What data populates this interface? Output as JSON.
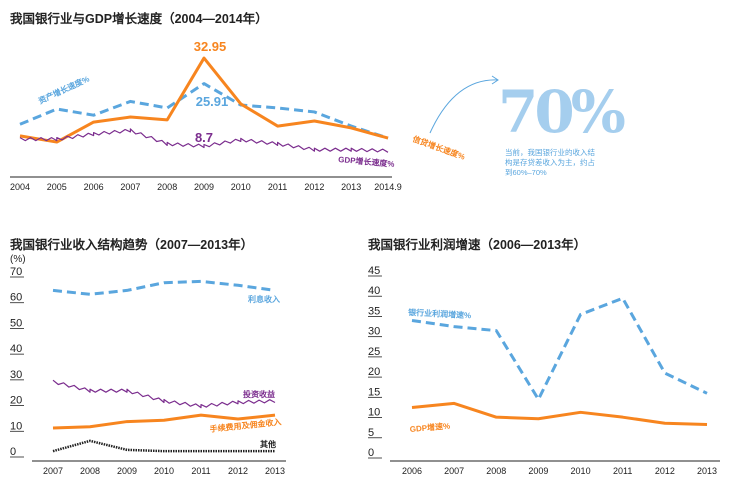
{
  "colors": {
    "blue": "#5aa6de",
    "orange": "#f7851f",
    "purple": "#7b2d8e",
    "black": "#222222"
  },
  "callout": {
    "big": "70%",
    "text": "当前，我国银行业的收入结构是存贷差收入为主，约占到60%–70%"
  },
  "chart_data": [
    {
      "type": "line",
      "title": "我国银行业与GDP增长速度（2004—2014年）",
      "categories": [
        "2004",
        "2005",
        "2006",
        "2007",
        "2008",
        "2009",
        "2010",
        "2011",
        "2012",
        "2013",
        "2014.9"
      ],
      "ylim": [
        0,
        36
      ],
      "series": [
        {
          "name": "资产增长速度%",
          "style": "dashed",
          "color": "blue",
          "values": [
            14.7,
            18.9,
            17.2,
            21,
            19.2,
            25.91,
            20,
            19.2,
            18.1,
            14.2,
            10.9
          ]
        },
        {
          "name": "信贷增长速度%",
          "style": "solid",
          "color": "orange",
          "values": [
            11.5,
            9.8,
            15.3,
            16.7,
            15.9,
            32.95,
            20.3,
            14.2,
            15.6,
            13.7,
            10.9
          ]
        },
        {
          "name": "GDP增长速度%",
          "style": "wavy",
          "color": "purple",
          "values": [
            10.6,
            10.6,
            12,
            13,
            9.3,
            8.7,
            10.4,
            9.3,
            7.7,
            7.7,
            7.4
          ]
        }
      ],
      "annotations": [
        "32.95",
        "25.91",
        "8.7"
      ]
    },
    {
      "type": "line",
      "title": "我国银行业收入结构趋势（2007—2013年）",
      "ylabel": "(%)",
      "categories": [
        "2007",
        "2008",
        "2009",
        "2010",
        "2011",
        "2012",
        "2013"
      ],
      "ylim": [
        0,
        70
      ],
      "yticks": [
        "0",
        "10",
        "20",
        "30",
        "40",
        "50",
        "60",
        "70"
      ],
      "series": [
        {
          "name": "利息收入",
          "style": "dashed",
          "color": "blue",
          "values": [
            64,
            62.5,
            64,
            67,
            67.5,
            66,
            64
          ]
        },
        {
          "name": "投资收益",
          "style": "wavy",
          "color": "purple",
          "values": [
            28.5,
            25,
            25,
            21,
            19,
            20.5,
            21
          ]
        },
        {
          "name": "手续费用及佣金收入",
          "style": "solid",
          "color": "orange",
          "values": [
            10.5,
            11,
            13,
            13.5,
            15.5,
            14,
            15.5
          ]
        },
        {
          "name": "其他",
          "style": "dotted",
          "color": "black",
          "values": [
            1.5,
            5.5,
            2,
            1.5,
            1.5,
            1.5,
            1.5
          ]
        }
      ]
    },
    {
      "type": "line",
      "title": "我国银行业利润增速（2006—2013年）",
      "categories": [
        "2006",
        "2007",
        "2008",
        "2009",
        "2010",
        "2011",
        "2012",
        "2013"
      ],
      "ylim": [
        0,
        45
      ],
      "yticks": [
        "0",
        "5",
        "10",
        "15",
        "20",
        "25",
        "30",
        "35",
        "40",
        "45"
      ],
      "series": [
        {
          "name": "银行业利润增速%",
          "style": "dashed",
          "color": "blue",
          "values": [
            33.5,
            32,
            31,
            14,
            35,
            39,
            20.5,
            15.5
          ]
        },
        {
          "name": "GDP增速%",
          "style": "solid",
          "color": "orange",
          "values": [
            12,
            13,
            9.6,
            9.2,
            10.8,
            9.6,
            8.1,
            7.8
          ]
        }
      ]
    }
  ]
}
